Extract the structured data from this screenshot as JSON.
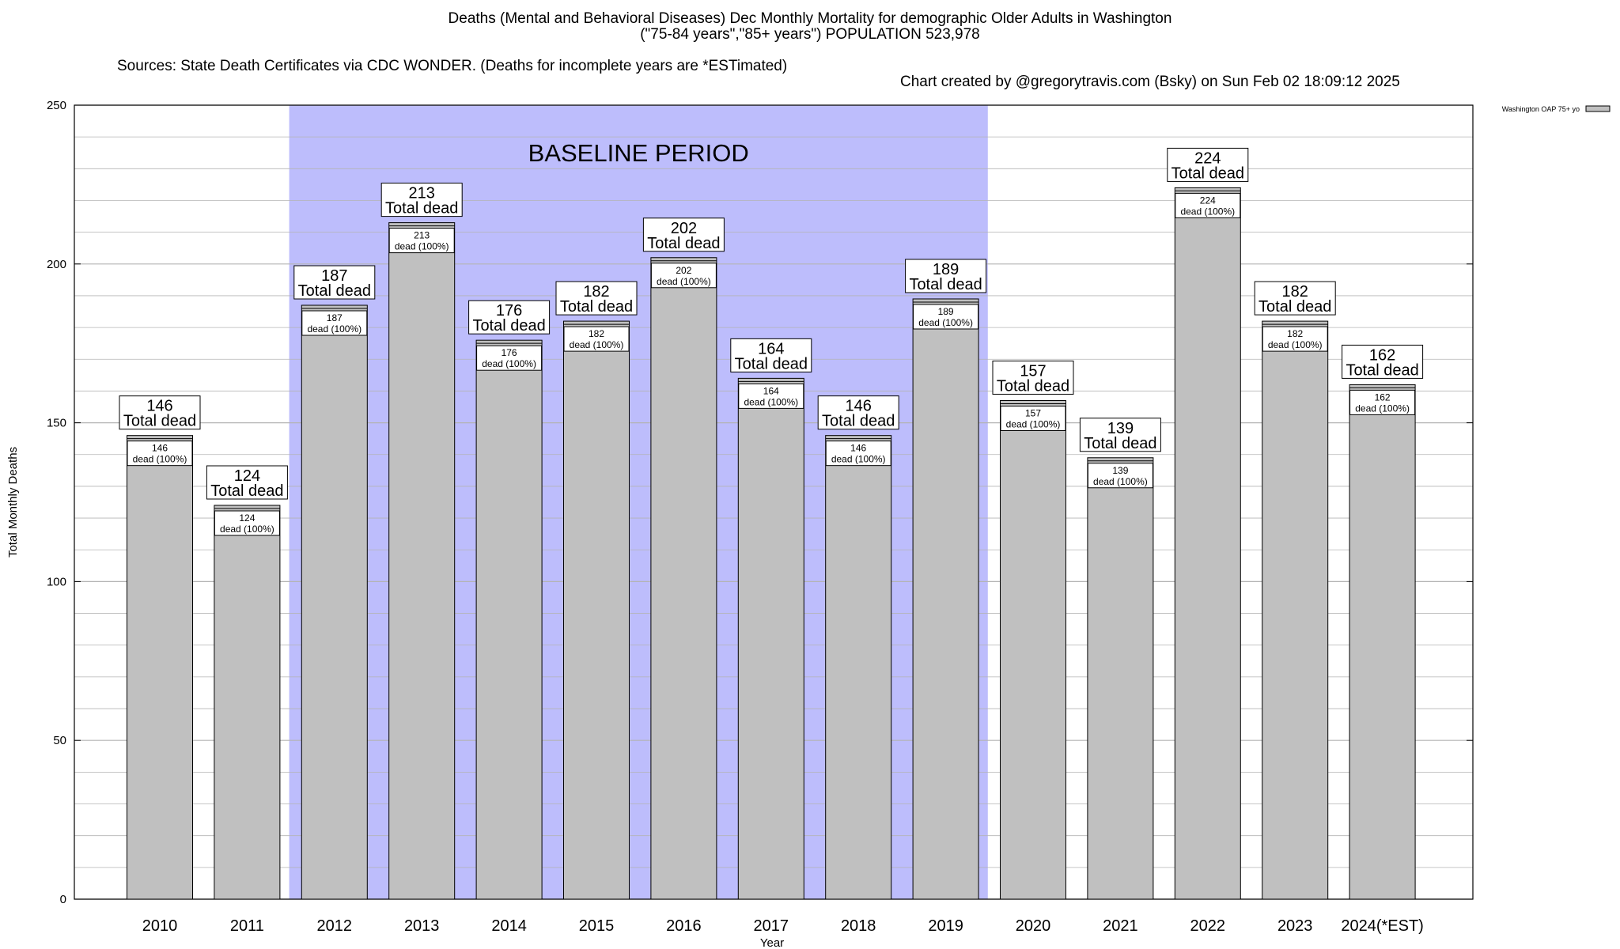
{
  "chart_data": {
    "type": "bar",
    "title": "Deaths (Mental and Behavioral Diseases) Dec Monthly Mortality for demographic Older Adults in Washington",
    "subtitle": "(\"75-84 years\",\"85+ years\") POPULATION 523,978",
    "source": "Sources: State Death Certificates via CDC WONDER. (Deaths for incomplete years are *ESTimated)",
    "credit": "Chart created by @gregorytravis.com (Bsky) on Sun Feb 02 18:09:12 2025",
    "xlabel": "Year",
    "ylabel": "Total Monthly Deaths",
    "ylim": [
      0,
      250
    ],
    "yticks": [
      0,
      50,
      100,
      150,
      200,
      250
    ],
    "grid": true,
    "legend": {
      "placement": "top-right",
      "entries": [
        "Washington OAP 75+ yo"
      ]
    },
    "categories": [
      "2010",
      "2011",
      "2012",
      "2013",
      "2014",
      "2015",
      "2016",
      "2017",
      "2018",
      "2019",
      "2020",
      "2021",
      "2022",
      "2023",
      "2024(*EST)"
    ],
    "series": [
      {
        "name": "Washington OAP 75+ yo",
        "values": [
          146,
          124,
          187,
          213,
          176,
          182,
          202,
          164,
          146,
          189,
          157,
          139,
          224,
          182,
          162
        ]
      }
    ],
    "total_label": "Total dead",
    "bar_label_suffix": "dead (100%)",
    "baseline": {
      "label": "BASELINE PERIOD",
      "from": "2012",
      "to": "2019"
    },
    "colors": {
      "bar": "#c0c0c0",
      "baseline": "#bdbdfc",
      "grid": "#b4b4b4"
    }
  }
}
